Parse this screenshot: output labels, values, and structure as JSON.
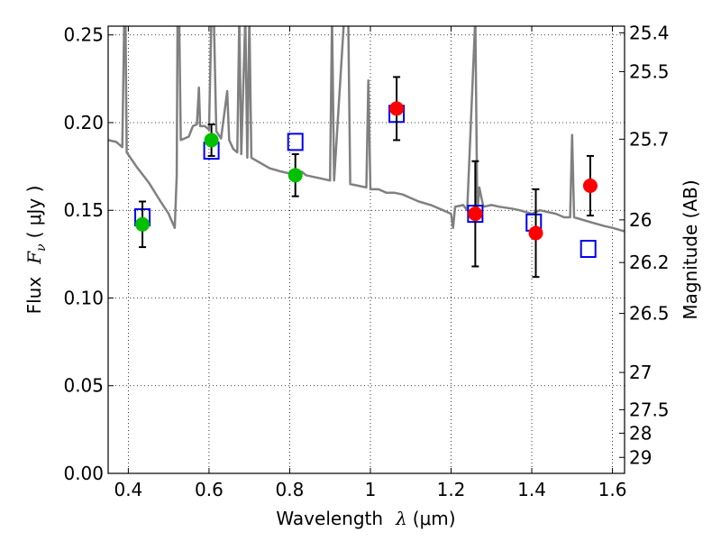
{
  "chart_data": {
    "type": "scatter",
    "xlabel_text": "Wavelength",
    "xlabel_symbol": "λ",
    "xlabel_unit": "(μm)",
    "ylabel_text": "Flux",
    "ylabel_symbol": "F",
    "ylabel_subscript": "ν",
    "ylabel_unit": "( μJy )",
    "y2label": "Magnitude (AB)",
    "xlim": [
      0.35,
      1.63
    ],
    "ylim": [
      0.0,
      0.255
    ],
    "grid": true,
    "x_ticks": [
      0.4,
      0.6,
      0.8,
      1.0,
      1.2,
      1.4,
      1.6
    ],
    "x_tick_labels": [
      "0.4",
      "0.6",
      "0.8",
      "1",
      "1.2",
      "1.4",
      "1.6"
    ],
    "y_ticks": [
      0.0,
      0.05,
      0.1,
      0.15,
      0.2,
      0.25
    ],
    "y_tick_labels": [
      "0.00",
      "0.05",
      "0.10",
      "0.15",
      "0.20",
      "0.25"
    ],
    "mag_ticks": [
      25.4,
      25.5,
      25.7,
      26,
      26.2,
      26.5,
      27,
      27.5,
      28,
      29
    ],
    "mag_tick_labels": [
      "25.4",
      "25.5",
      "25.7",
      "26",
      "26.2",
      "26.5",
      "27",
      "27.5",
      "28",
      "29"
    ],
    "observed": [
      {
        "x": 0.435,
        "y": 0.142,
        "err": 0.013,
        "color": "#00c000"
      },
      {
        "x": 0.606,
        "y": 0.19,
        "err": 0.009,
        "color": "#00c000"
      },
      {
        "x": 0.814,
        "y": 0.17,
        "err": 0.012,
        "color": "#00c000"
      },
      {
        "x": 1.065,
        "y": 0.208,
        "err": 0.018,
        "color": "#ff0000"
      },
      {
        "x": 1.26,
        "y": 0.148,
        "err": 0.03,
        "color": "#ff0000"
      },
      {
        "x": 1.41,
        "y": 0.137,
        "err": 0.025,
        "color": "#ff0000"
      },
      {
        "x": 1.545,
        "y": 0.164,
        "err": 0.017,
        "color": "#ff0000"
      }
    ],
    "model_points": [
      {
        "x": 0.435,
        "y": 0.146
      },
      {
        "x": 0.606,
        "y": 0.184
      },
      {
        "x": 0.814,
        "y": 0.189
      },
      {
        "x": 1.065,
        "y": 0.205
      },
      {
        "x": 1.26,
        "y": 0.148
      },
      {
        "x": 1.405,
        "y": 0.143
      },
      {
        "x": 1.54,
        "y": 0.128
      }
    ],
    "model_spectrum": [
      [
        0.35,
        0.19
      ],
      [
        0.37,
        0.189
      ],
      [
        0.385,
        0.186
      ],
      [
        0.39,
        0.26
      ],
      [
        0.393,
        0.26
      ],
      [
        0.396,
        0.183
      ],
      [
        0.42,
        0.175
      ],
      [
        0.45,
        0.166
      ],
      [
        0.48,
        0.155
      ],
      [
        0.5,
        0.148
      ],
      [
        0.515,
        0.14
      ],
      [
        0.52,
        0.17
      ],
      [
        0.522,
        0.26
      ],
      [
        0.526,
        0.26
      ],
      [
        0.53,
        0.19
      ],
      [
        0.55,
        0.192
      ],
      [
        0.56,
        0.198
      ],
      [
        0.57,
        0.199
      ],
      [
        0.575,
        0.22
      ],
      [
        0.578,
        0.198
      ],
      [
        0.59,
        0.198
      ],
      [
        0.6,
        0.196
      ],
      [
        0.606,
        0.26
      ],
      [
        0.612,
        0.26
      ],
      [
        0.618,
        0.195
      ],
      [
        0.63,
        0.191
      ],
      [
        0.645,
        0.218
      ],
      [
        0.65,
        0.19
      ],
      [
        0.66,
        0.185
      ],
      [
        0.67,
        0.183
      ],
      [
        0.675,
        0.26
      ],
      [
        0.68,
        0.182
      ],
      [
        0.69,
        0.26
      ],
      [
        0.695,
        0.18
      ],
      [
        0.7,
        0.26
      ],
      [
        0.705,
        0.18
      ],
      [
        0.72,
        0.178
      ],
      [
        0.75,
        0.174
      ],
      [
        0.78,
        0.172
      ],
      [
        0.8,
        0.171
      ],
      [
        0.82,
        0.17
      ],
      [
        0.83,
        0.172
      ],
      [
        0.84,
        0.17
      ],
      [
        0.86,
        0.169
      ],
      [
        0.88,
        0.168
      ],
      [
        0.9,
        0.167
      ],
      [
        0.905,
        0.26
      ],
      [
        0.91,
        0.167
      ],
      [
        0.935,
        0.26
      ],
      [
        0.945,
        0.26
      ],
      [
        0.95,
        0.165
      ],
      [
        0.97,
        0.164
      ],
      [
        0.99,
        0.163
      ],
      [
        0.995,
        0.224
      ],
      [
        1.0,
        0.162
      ],
      [
        1.02,
        0.162
      ],
      [
        1.04,
        0.16
      ],
      [
        1.06,
        0.16
      ],
      [
        1.08,
        0.159
      ],
      [
        1.1,
        0.157
      ],
      [
        1.12,
        0.155
      ],
      [
        1.15,
        0.153
      ],
      [
        1.18,
        0.15
      ],
      [
        1.2,
        0.148
      ],
      [
        1.205,
        0.14
      ],
      [
        1.21,
        0.152
      ],
      [
        1.23,
        0.153
      ],
      [
        1.24,
        0.15
      ],
      [
        1.26,
        0.26
      ],
      [
        1.265,
        0.148
      ],
      [
        1.27,
        0.163
      ],
      [
        1.28,
        0.152
      ],
      [
        1.3,
        0.153
      ],
      [
        1.32,
        0.152
      ],
      [
        1.35,
        0.151
      ],
      [
        1.37,
        0.15
      ],
      [
        1.4,
        0.148
      ],
      [
        1.42,
        0.15
      ],
      [
        1.44,
        0.149
      ],
      [
        1.46,
        0.148
      ],
      [
        1.48,
        0.146
      ],
      [
        1.495,
        0.146
      ],
      [
        1.5,
        0.193
      ],
      [
        1.505,
        0.146
      ],
      [
        1.52,
        0.145
      ],
      [
        1.55,
        0.143
      ],
      [
        1.58,
        0.141
      ],
      [
        1.6,
        0.14
      ],
      [
        1.63,
        0.138
      ]
    ]
  }
}
